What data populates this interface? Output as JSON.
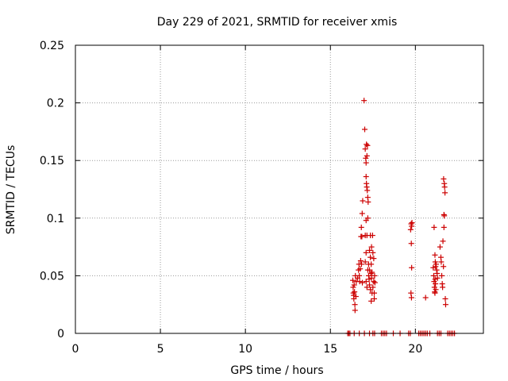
{
  "chart_data": {
    "type": "scatter",
    "title": "Day 229 of 2021, SRMTID for receiver xmis",
    "xlabel": "GPS time / hours",
    "ylabel": "SRMTID / TECUs",
    "xlim": [
      0,
      24
    ],
    "ylim": [
      0,
      0.25
    ],
    "xticks": [
      0,
      5,
      10,
      15,
      20
    ],
    "yticks": [
      0,
      0.05,
      0.1,
      0.15,
      0.2,
      0.25
    ],
    "xtick_labels": [
      "0",
      "5",
      "10",
      "15",
      "20"
    ],
    "ytick_labels": [
      "0",
      "0.05",
      "0.1",
      "0.15",
      "0.2",
      "0.25"
    ],
    "grid": true,
    "marker": "+",
    "marker_color": "#cc0000",
    "series": [
      {
        "name": "SRMTID",
        "points": [
          [
            16.02,
            0
          ],
          [
            16.08,
            0
          ],
          [
            16.15,
            0
          ],
          [
            16.4,
            0
          ],
          [
            16.7,
            0
          ],
          [
            17.0,
            0
          ],
          [
            17.3,
            0
          ],
          [
            17.5,
            0
          ],
          [
            17.6,
            0
          ],
          [
            18.0,
            0
          ],
          [
            18.1,
            0
          ],
          [
            18.2,
            0
          ],
          [
            18.3,
            0
          ],
          [
            18.7,
            0
          ],
          [
            19.1,
            0
          ],
          [
            19.6,
            0
          ],
          [
            19.7,
            0
          ],
          [
            20.2,
            0
          ],
          [
            20.3,
            0
          ],
          [
            20.4,
            0
          ],
          [
            20.5,
            0
          ],
          [
            20.6,
            0
          ],
          [
            20.7,
            0
          ],
          [
            20.85,
            0
          ],
          [
            21.3,
            0
          ],
          [
            21.4,
            0
          ],
          [
            21.5,
            0
          ],
          [
            21.9,
            0
          ],
          [
            22.0,
            0
          ],
          [
            22.1,
            0
          ],
          [
            22.2,
            0
          ],
          [
            22.3,
            0
          ],
          [
            16.32,
            0.046
          ],
          [
            16.34,
            0.04
          ],
          [
            16.35,
            0.035
          ],
          [
            16.37,
            0.033
          ],
          [
            16.38,
            0.03
          ],
          [
            16.4,
            0.042
          ],
          [
            16.42,
            0.036
          ],
          [
            16.44,
            0.025
          ],
          [
            16.45,
            0.02
          ],
          [
            16.47,
            0.05
          ],
          [
            16.5,
            0.032
          ],
          [
            16.52,
            0.045
          ],
          [
            16.6,
            0.048
          ],
          [
            16.65,
            0.055
          ],
          [
            16.68,
            0.06
          ],
          [
            16.7,
            0.05
          ],
          [
            16.72,
            0.045
          ],
          [
            16.75,
            0.056
          ],
          [
            16.78,
            0.063
          ],
          [
            16.8,
            0.084
          ],
          [
            16.82,
            0.092
          ],
          [
            16.85,
            0.084
          ],
          [
            16.87,
            0.104
          ],
          [
            16.9,
            0.115
          ],
          [
            16.83,
            0.06
          ],
          [
            16.88,
            0.044
          ],
          [
            16.98,
            0.202
          ],
          [
            17.02,
            0.177
          ],
          [
            17.05,
            0.16
          ],
          [
            17.08,
            0.152
          ],
          [
            17.1,
            0.148
          ],
          [
            17.12,
            0.164
          ],
          [
            17.15,
            0.154
          ],
          [
            17.18,
            0.163
          ],
          [
            17.1,
            0.136
          ],
          [
            17.12,
            0.13
          ],
          [
            17.14,
            0.127
          ],
          [
            17.17,
            0.124
          ],
          [
            17.2,
            0.118
          ],
          [
            17.22,
            0.114
          ],
          [
            17.1,
            0.098
          ],
          [
            17.05,
            0.085
          ],
          [
            17.2,
            0.1
          ],
          [
            17.15,
            0.085
          ],
          [
            17.1,
            0.07
          ],
          [
            17.05,
            0.062
          ],
          [
            17.2,
            0.055
          ],
          [
            17.25,
            0.05
          ],
          [
            17.28,
            0.047
          ],
          [
            17.3,
            0.042
          ],
          [
            17.35,
            0.038
          ],
          [
            17.4,
            0.028
          ],
          [
            17.45,
            0.035
          ],
          [
            17.3,
            0.072
          ],
          [
            17.35,
            0.066
          ],
          [
            17.4,
            0.06
          ],
          [
            17.45,
            0.053
          ],
          [
            17.5,
            0.07
          ],
          [
            17.48,
            0.085
          ],
          [
            17.42,
            0.075
          ],
          [
            17.55,
            0.065
          ],
          [
            17.55,
            0.045
          ],
          [
            17.5,
            0.04
          ],
          [
            17.58,
            0.035
          ],
          [
            17.3,
            0.055
          ],
          [
            17.25,
            0.06
          ],
          [
            17.38,
            0.052
          ],
          [
            17.42,
            0.048
          ],
          [
            17.1,
            0.045
          ],
          [
            17.15,
            0.04
          ],
          [
            17.6,
            0.05
          ],
          [
            17.62,
            0.044
          ],
          [
            17.58,
            0.03
          ],
          [
            17.35,
            0.085
          ],
          [
            19.75,
            0.095
          ],
          [
            19.78,
            0.093
          ],
          [
            19.72,
            0.09
          ],
          [
            19.8,
            0.096
          ],
          [
            19.76,
            0.078
          ],
          [
            19.78,
            0.057
          ],
          [
            19.74,
            0.035
          ],
          [
            19.77,
            0.031
          ],
          [
            20.6,
            0.031
          ],
          [
            21.05,
            0.057
          ],
          [
            21.08,
            0.05
          ],
          [
            21.1,
            0.045
          ],
          [
            21.12,
            0.04
          ],
          [
            21.14,
            0.036
          ],
          [
            21.16,
            0.047
          ],
          [
            21.18,
            0.043
          ],
          [
            21.2,
            0.038
          ],
          [
            21.15,
            0.068
          ],
          [
            21.17,
            0.062
          ],
          [
            21.19,
            0.058
          ],
          [
            21.22,
            0.06
          ],
          [
            21.25,
            0.055
          ],
          [
            21.28,
            0.052
          ],
          [
            21.3,
            0.048
          ],
          [
            21.1,
            0.092
          ],
          [
            21.15,
            0.035
          ],
          [
            21.45,
            0.075
          ],
          [
            21.5,
            0.066
          ],
          [
            21.52,
            0.062
          ],
          [
            21.55,
            0.05
          ],
          [
            21.58,
            0.043
          ],
          [
            21.6,
            0.04
          ],
          [
            21.62,
            0.08
          ],
          [
            21.65,
            0.058
          ],
          [
            21.68,
            0.103
          ],
          [
            21.7,
            0.102
          ],
          [
            21.68,
            0.092
          ],
          [
            21.66,
            0.134
          ],
          [
            21.7,
            0.13
          ],
          [
            21.72,
            0.127
          ],
          [
            21.74,
            0.122
          ],
          [
            21.76,
            0.03
          ],
          [
            21.78,
            0.025
          ]
        ]
      }
    ]
  }
}
